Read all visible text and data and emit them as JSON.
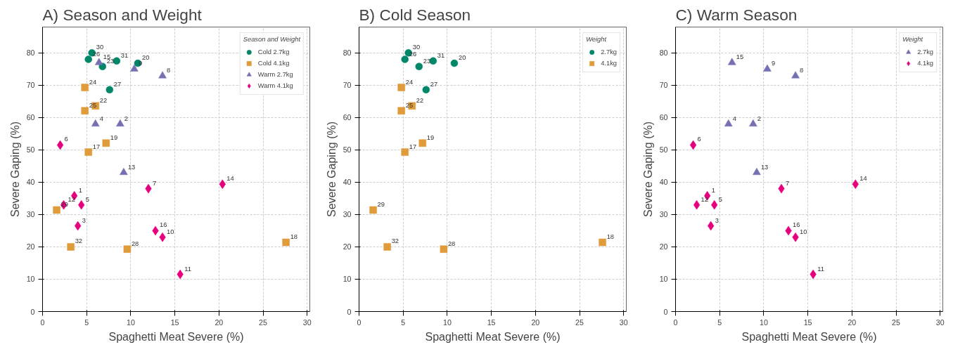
{
  "chart_data": [
    {
      "type": "scatter",
      "title": "A) Season and Weight",
      "xlabel": "Spaghetti Meat Severe (%)",
      "ylabel": "Severe Gaping (%)",
      "legend_title": "Season and Weight",
      "legend": "top right",
      "grid": true,
      "xlim": [
        0,
        30.3
      ],
      "ylim": [
        0,
        88
      ],
      "xticks": [
        0,
        5,
        10,
        15,
        20,
        25,
        30
      ],
      "yticks": [
        0,
        10,
        20,
        30,
        40,
        50,
        60,
        70,
        80
      ],
      "series": [
        {
          "name": "Cold 2.7kg",
          "color": "#00876a",
          "marker": "circle",
          "x": [
            5.6,
            5.2,
            6.8,
            8.4,
            10.8,
            7.6
          ],
          "values": [
            80,
            78,
            75.8,
            77.5,
            76.8,
            68.6
          ]
        },
        {
          "name": "Cold 4.1kg",
          "color": "#e09b3a",
          "marker": "square",
          "x": [
            4.8,
            6.0,
            4.8,
            7.2,
            5.2,
            1.6,
            3.2,
            9.6,
            27.6
          ],
          "values": [
            69.3,
            63.6,
            62.1,
            52.1,
            49.3,
            31.4,
            20,
            19.3,
            21.4
          ]
        },
        {
          "name": "Warm 2.7kg",
          "color": "#7570b3",
          "marker": "triangle",
          "x": [
            6.4,
            10.4,
            13.6,
            6.0,
            8.8,
            9.2
          ],
          "values": [
            77,
            75,
            72.9,
            58,
            58,
            43
          ]
        },
        {
          "name": "Warm 4.1kg",
          "color": "#e6007e",
          "marker": "diamond",
          "x": [
            2.0,
            3.6,
            2.4,
            4.4,
            4.0,
            12.0,
            20.4,
            12.8,
            13.6,
            15.6
          ],
          "values": [
            51.5,
            35.8,
            33,
            33,
            26.5,
            38,
            39.4,
            25,
            23,
            11.5
          ]
        }
      ],
      "annotations": [
        {
          "text": "30",
          "x": 5.6,
          "y": 80
        },
        {
          "text": "26",
          "x": 5.2,
          "y": 78
        },
        {
          "text": "23",
          "x": 6.8,
          "y": 75.8
        },
        {
          "text": "31",
          "x": 8.4,
          "y": 77.5
        },
        {
          "text": "20",
          "x": 10.8,
          "y": 76.8
        },
        {
          "text": "27",
          "x": 7.6,
          "y": 68.6
        },
        {
          "text": "24",
          "x": 4.8,
          "y": 69.3
        },
        {
          "text": "22",
          "x": 6.0,
          "y": 63.6
        },
        {
          "text": "25",
          "x": 4.8,
          "y": 62.1
        },
        {
          "text": "19",
          "x": 7.2,
          "y": 52.1
        },
        {
          "text": "17",
          "x": 5.2,
          "y": 49.3
        },
        {
          "text": "29",
          "x": 1.6,
          "y": 31.4
        },
        {
          "text": "32",
          "x": 3.2,
          "y": 20
        },
        {
          "text": "28",
          "x": 9.6,
          "y": 19.3
        },
        {
          "text": "18",
          "x": 27.6,
          "y": 21.4
        },
        {
          "text": "15",
          "x": 6.4,
          "y": 77
        },
        {
          "text": "9",
          "x": 10.4,
          "y": 75
        },
        {
          "text": "8",
          "x": 13.6,
          "y": 72.9
        },
        {
          "text": "4",
          "x": 6.0,
          "y": 58
        },
        {
          "text": "2",
          "x": 8.8,
          "y": 58
        },
        {
          "text": "13",
          "x": 9.2,
          "y": 43
        },
        {
          "text": "6",
          "x": 2.0,
          "y": 51.5
        },
        {
          "text": "1",
          "x": 3.6,
          "y": 35.8
        },
        {
          "text": "12",
          "x": 2.4,
          "y": 33
        },
        {
          "text": "5",
          "x": 4.4,
          "y": 33
        },
        {
          "text": "3",
          "x": 4.0,
          "y": 26.5
        },
        {
          "text": "7",
          "x": 12.0,
          "y": 38
        },
        {
          "text": "14",
          "x": 20.4,
          "y": 39.4
        },
        {
          "text": "16",
          "x": 12.8,
          "y": 25
        },
        {
          "text": "10",
          "x": 13.6,
          "y": 23
        },
        {
          "text": "11",
          "x": 15.6,
          "y": 11.5
        }
      ]
    },
    {
      "type": "scatter",
      "title": "B) Cold Season",
      "xlabel": "Spaghetti Meat Severe (%)",
      "ylabel": "Severe Gaping (%)",
      "legend_title": "Weight",
      "legend": "top right",
      "grid": true,
      "xlim": [
        0,
        30.3
      ],
      "ylim": [
        0,
        88
      ],
      "xticks": [
        0,
        5,
        10,
        15,
        20,
        25,
        30
      ],
      "yticks": [
        0,
        10,
        20,
        30,
        40,
        50,
        60,
        70,
        80
      ],
      "series": [
        {
          "name": "2.7kg",
          "color": "#00876a",
          "marker": "circle",
          "x": [
            5.6,
            5.2,
            6.8,
            8.4,
            10.8,
            7.6
          ],
          "values": [
            80,
            78,
            75.8,
            77.5,
            76.8,
            68.6
          ]
        },
        {
          "name": "4.1kg",
          "color": "#e09b3a",
          "marker": "square",
          "x": [
            4.8,
            6.0,
            4.8,
            7.2,
            5.2,
            1.6,
            3.2,
            9.6,
            27.6
          ],
          "values": [
            69.3,
            63.6,
            62.1,
            52.1,
            49.3,
            31.4,
            20,
            19.3,
            21.4
          ]
        }
      ],
      "annotations": [
        {
          "text": "30",
          "x": 5.6,
          "y": 80
        },
        {
          "text": "26",
          "x": 5.2,
          "y": 78
        },
        {
          "text": "23",
          "x": 6.8,
          "y": 75.8
        },
        {
          "text": "31",
          "x": 8.4,
          "y": 77.5
        },
        {
          "text": "20",
          "x": 10.8,
          "y": 76.8
        },
        {
          "text": "27",
          "x": 7.6,
          "y": 68.6
        },
        {
          "text": "24",
          "x": 4.8,
          "y": 69.3
        },
        {
          "text": "22",
          "x": 6.0,
          "y": 63.6
        },
        {
          "text": "25",
          "x": 4.8,
          "y": 62.1
        },
        {
          "text": "19",
          "x": 7.2,
          "y": 52.1
        },
        {
          "text": "17",
          "x": 5.2,
          "y": 49.3
        },
        {
          "text": "29",
          "x": 1.6,
          "y": 31.4
        },
        {
          "text": "32",
          "x": 3.2,
          "y": 20
        },
        {
          "text": "28",
          "x": 9.6,
          "y": 19.3
        },
        {
          "text": "18",
          "x": 27.6,
          "y": 21.4
        }
      ]
    },
    {
      "type": "scatter",
      "title": "C) Warm Season",
      "xlabel": "Spaghetti Meat Severe (%)",
      "ylabel": "Severe Gaping (%)",
      "legend_title": "Weight",
      "legend": "top right",
      "grid": true,
      "xlim": [
        0,
        30.3
      ],
      "ylim": [
        0,
        88
      ],
      "xticks": [
        0,
        5,
        10,
        15,
        20,
        25,
        30
      ],
      "yticks": [
        0,
        10,
        20,
        30,
        40,
        50,
        60,
        70,
        80
      ],
      "series": [
        {
          "name": "2.7kg",
          "color": "#7570b3",
          "marker": "triangle",
          "x": [
            6.4,
            10.4,
            13.6,
            6.0,
            8.8,
            9.2
          ],
          "values": [
            77,
            75,
            72.9,
            58,
            58,
            43
          ]
        },
        {
          "name": "4.1kg",
          "color": "#e6007e",
          "marker": "diamond",
          "x": [
            2.0,
            3.6,
            2.4,
            4.4,
            4.0,
            12.0,
            20.4,
            12.8,
            13.6,
            15.6
          ],
          "values": [
            51.5,
            35.8,
            33,
            33,
            26.5,
            38,
            39.4,
            25,
            23,
            11.5
          ]
        }
      ],
      "annotations": [
        {
          "text": "15",
          "x": 6.4,
          "y": 77
        },
        {
          "text": "9",
          "x": 10.4,
          "y": 75
        },
        {
          "text": "8",
          "x": 13.6,
          "y": 72.9
        },
        {
          "text": "4",
          "x": 6.0,
          "y": 58
        },
        {
          "text": "2",
          "x": 8.8,
          "y": 58
        },
        {
          "text": "13",
          "x": 9.2,
          "y": 43
        },
        {
          "text": "6",
          "x": 2.0,
          "y": 51.5
        },
        {
          "text": "1",
          "x": 3.6,
          "y": 35.8
        },
        {
          "text": "12",
          "x": 2.4,
          "y": 33
        },
        {
          "text": "5",
          "x": 4.4,
          "y": 33
        },
        {
          "text": "3",
          "x": 4.0,
          "y": 26.5
        },
        {
          "text": "7",
          "x": 12.0,
          "y": 38
        },
        {
          "text": "14",
          "x": 20.4,
          "y": 39.4
        },
        {
          "text": "16",
          "x": 12.8,
          "y": 25
        },
        {
          "text": "10",
          "x": 13.6,
          "y": 23
        },
        {
          "text": "11",
          "x": 15.6,
          "y": 11.5
        }
      ]
    }
  ]
}
